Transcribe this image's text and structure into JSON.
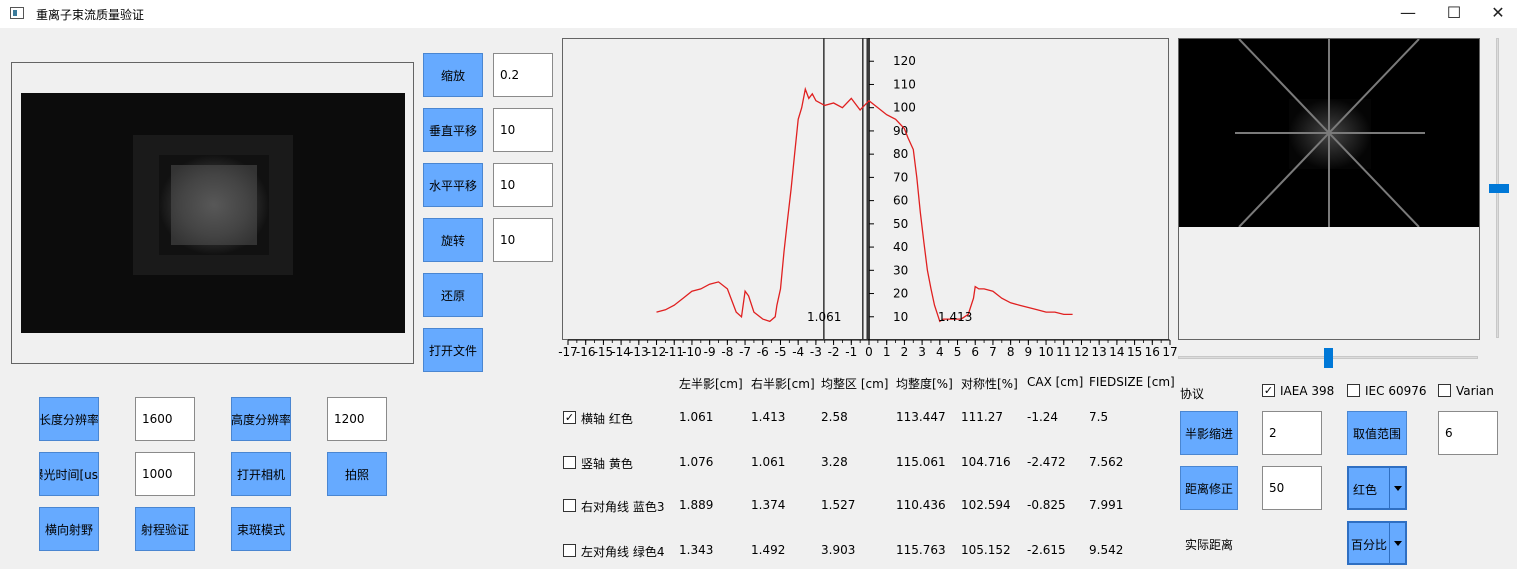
{
  "window": {
    "title": "重离子束流质量验证",
    "minimize": "—",
    "maximize": "☐",
    "close": "✕"
  },
  "transform": {
    "zoom_label": "缩放",
    "zoom_value": "0.2",
    "vshift_label": "垂直平移",
    "vshift_value": "10",
    "hshift_label": "水平平移",
    "hshift_value": "10",
    "rotate_label": "旋转",
    "rotate_value": "10",
    "restore_label": "还原",
    "open_file_label": "打开文件"
  },
  "camera": {
    "width_res_label": "长度分辨率",
    "width_res_value": "1600",
    "height_res_label": "高度分辨率",
    "height_res_value": "1200",
    "exposure_label": "曝光时间[us",
    "exposure_value": "1000",
    "open_camera_label": "打开相机",
    "capture_label": "拍照",
    "lateral_field_label": "横向射野",
    "range_verify_label": "射程验证",
    "spot_mode_label": "束斑模式"
  },
  "table": {
    "headers": [
      "左半影[cm]",
      "右半影[cm]",
      "均整区 [cm]",
      "均整度[%]",
      "对称性[%]",
      "CAX [cm]",
      "FIEDSIZE [cm]"
    ],
    "rows": [
      {
        "label": "横轴 红色",
        "checked": true,
        "values": [
          "1.061",
          "1.413",
          "2.58",
          "113.447",
          "111.27",
          "-1.24",
          "7.5"
        ]
      },
      {
        "label": "竖轴 黄色",
        "checked": false,
        "values": [
          "1.076",
          "1.061",
          "3.28",
          "115.061",
          "104.716",
          "-2.472",
          "7.562"
        ]
      },
      {
        "label": "右对角线 蓝色3",
        "checked": false,
        "values": [
          "1.889",
          "1.374",
          "1.527",
          "110.436",
          "102.594",
          "-0.825",
          "7.991"
        ]
      },
      {
        "label": "左对角线 绿色4",
        "checked": false,
        "values": [
          "1.343",
          "1.492",
          "3.903",
          "115.763",
          "105.152",
          "-2.615",
          "9.542"
        ]
      }
    ]
  },
  "protocol": {
    "label": "协议",
    "options": [
      {
        "label": "IAEA 398",
        "checked": true
      },
      {
        "label": "IEC 60976",
        "checked": false
      },
      {
        "label": "Varian",
        "checked": false
      }
    ],
    "penumbra_label": "半影缩进",
    "penumbra_value": "2",
    "range_label": "取值范围",
    "range_value": "6",
    "distance_fix_label": "距离修正",
    "distance_fix_value": "50",
    "actual_distance_label": "实际距离",
    "color_select": "红色",
    "unit_select": "百分比"
  },
  "chart_data": {
    "type": "line",
    "title": "",
    "xlim": [
      -17,
      17
    ],
    "ylim": [
      0,
      130
    ],
    "x_ticks": [
      -17,
      -16,
      -15,
      -14,
      -13,
      -12,
      -11,
      -10,
      -9,
      -8,
      -7,
      -6,
      -5,
      -4,
      -3,
      -2,
      -1,
      0,
      1,
      2,
      3,
      4,
      5,
      6,
      7,
      8,
      9,
      10,
      11,
      12,
      13,
      14,
      15,
      16,
      17
    ],
    "x_tick_labels": [
      "-17",
      "-16",
      "-15",
      "-14",
      "-13",
      "-12",
      "-11",
      "-10",
      "-9",
      "-8",
      "-7",
      "-6",
      "-5",
      "-4",
      "-3",
      "-2",
      "-1",
      "0",
      "1",
      "2",
      "3",
      "4",
      "5",
      "6",
      "7",
      "8",
      "9",
      "10",
      "11",
      "12",
      "13",
      "14",
      "15",
      "16",
      "17"
    ],
    "y_ticks": [
      10,
      20,
      30,
      40,
      50,
      60,
      70,
      80,
      90,
      100,
      110,
      120
    ],
    "y_tick_labels": [
      "10",
      "20",
      "30",
      "40",
      "50",
      "60",
      "70",
      "80",
      "90",
      "100",
      "110",
      "120"
    ],
    "series_color": "#e02020",
    "series_x": [
      -12,
      -11.5,
      -11,
      -10.5,
      -10,
      -9.5,
      -9,
      -8.5,
      -8,
      -7.5,
      -7.2,
      -7,
      -6.8,
      -6.5,
      -6,
      -5.6,
      -5.3,
      -5.2,
      -5,
      -4.8,
      -4.6,
      -4.4,
      -4.2,
      -4,
      -3.8,
      -3.6,
      -3.4,
      -3.2,
      -3,
      -2.5,
      -2,
      -1.5,
      -1,
      -0.5,
      0,
      0.5,
      1,
      1.5,
      2,
      2.2,
      2.5,
      2.7,
      2.9,
      3.1,
      3.3,
      3.5,
      3.7,
      4,
      4.2,
      4.5,
      4.8,
      5.2,
      5.6,
      5.9,
      6,
      6.2,
      6.5,
      7,
      7.5,
      8,
      8.5,
      9,
      9.5,
      10,
      10.5,
      11,
      11.5
    ],
    "series_y": [
      12,
      13,
      15,
      18,
      21,
      22,
      24,
      25,
      22,
      12,
      10,
      21,
      19,
      12,
      9,
      8,
      10,
      15,
      22,
      38,
      52,
      65,
      80,
      95,
      100,
      108,
      104,
      106,
      103,
      101,
      102,
      100,
      104,
      99,
      103,
      100,
      97,
      95,
      91,
      87,
      82,
      70,
      55,
      42,
      30,
      22,
      15,
      8,
      9,
      9,
      9,
      9,
      11,
      18,
      23,
      22,
      22,
      21,
      18,
      16,
      15,
      14,
      13,
      12,
      12,
      11,
      11
    ],
    "vertical_markers": [
      -2.55,
      -0.35,
      -0.1
    ],
    "annotations": [
      {
        "text": "1.061",
        "x": -3.5,
        "y": 10
      },
      {
        "text": "1.413",
        "x": 3.9,
        "y": 10
      }
    ]
  },
  "sliders": {
    "horizontal_value": 0.5,
    "vertical_value": 0.5
  }
}
